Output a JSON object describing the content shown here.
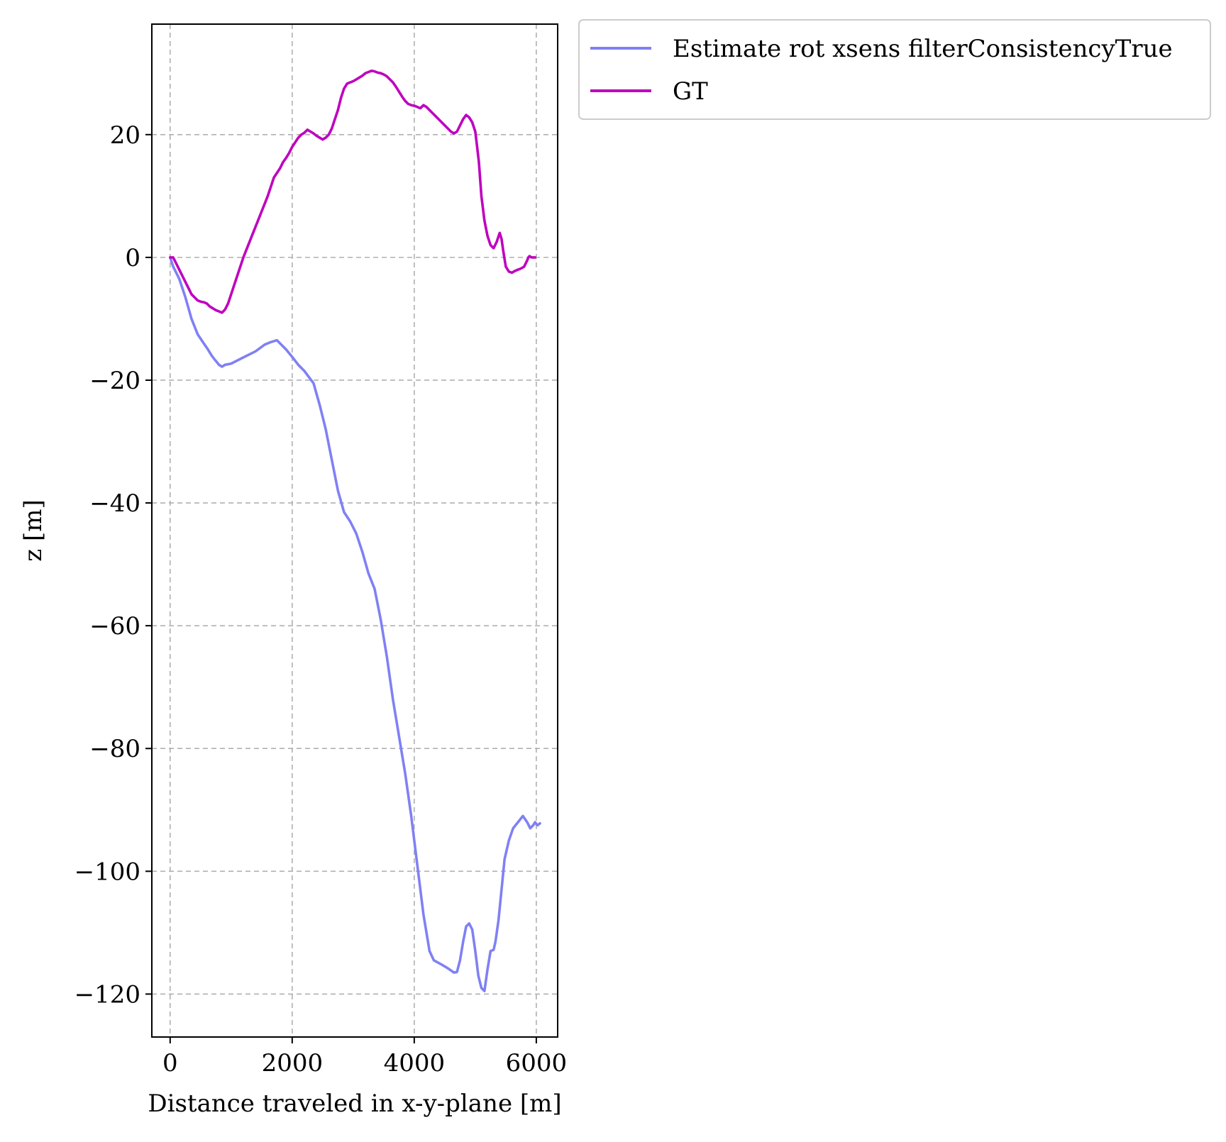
{
  "chart_data": {
    "type": "line",
    "xlabel": "Distance traveled in x-y-plane [m]",
    "ylabel": "z [m]",
    "xlim": [
      -300,
      6350
    ],
    "ylim": [
      -127,
      38
    ],
    "xticks": [
      0,
      2000,
      4000,
      6000
    ],
    "yticks": [
      20,
      0,
      -20,
      -40,
      -60,
      -80,
      -100,
      -120
    ],
    "xtick_labels": [
      "0",
      "2000",
      "4000",
      "6000"
    ],
    "ytick_labels": [
      "20",
      "0",
      "−20",
      "−40",
      "−60",
      "−80",
      "−100",
      "−120"
    ],
    "grid": true,
    "legend_position": "outside-top-right",
    "series": [
      {
        "name": "Estimate rot xsens filterConsistencyTrue",
        "color": "#8080f5",
        "x": [
          0,
          50,
          150,
          250,
          350,
          450,
          550,
          620,
          680,
          720,
          760,
          800,
          850,
          900,
          1000,
          1200,
          1400,
          1550,
          1650,
          1750,
          1800,
          1900,
          2000,
          2100,
          2200,
          2350,
          2450,
          2550,
          2650,
          2750,
          2850,
          2950,
          3050,
          3150,
          3250,
          3350,
          3450,
          3550,
          3650,
          3750,
          3850,
          3950,
          4050,
          4150,
          4250,
          4320,
          4450,
          4550,
          4650,
          4700,
          4750,
          4800,
          4850,
          4900,
          4950,
          5000,
          5050,
          5100,
          5150,
          5200,
          5250,
          5300,
          5330,
          5380,
          5430,
          5480,
          5550,
          5620,
          5700,
          5780,
          5850,
          5900,
          5950,
          5980,
          6000,
          6020,
          6060
        ],
        "values": [
          0,
          -1.5,
          -3.5,
          -6.5,
          -10,
          -12.5,
          -14,
          -15,
          -16,
          -16.5,
          -17,
          -17.5,
          -17.8,
          -17.5,
          -17.3,
          -16.3,
          -15.3,
          -14.2,
          -13.8,
          -13.5,
          -14,
          -15,
          -16.2,
          -17.5,
          -18.5,
          -20.5,
          -24,
          -28,
          -33,
          -38,
          -41.5,
          -43,
          -45,
          -48,
          -51.5,
          -54,
          -59,
          -65,
          -72,
          -78,
          -84,
          -91,
          -99,
          -107,
          -113,
          -114.5,
          -115.2,
          -115.8,
          -116.5,
          -116.4,
          -114.5,
          -111.5,
          -109,
          -108.5,
          -109.5,
          -113,
          -117,
          -119,
          -119.5,
          -116,
          -113,
          -112.8,
          -111.5,
          -108,
          -103,
          -98,
          -95,
          -93,
          -92,
          -91,
          -92,
          -93,
          -92.5,
          -92,
          -92.3,
          -92.5,
          -92.2
        ]
      },
      {
        "name": "GT",
        "color": "#bf00bf",
        "x": [
          0,
          50,
          100,
          150,
          200,
          250,
          300,
          350,
          400,
          450,
          500,
          550,
          600,
          650,
          700,
          750,
          800,
          850,
          900,
          950,
          1000,
          1100,
          1200,
          1300,
          1400,
          1500,
          1600,
          1700,
          1800,
          1850,
          1900,
          1950,
          2000,
          2100,
          2150,
          2200,
          2250,
          2300,
          2350,
          2400,
          2450,
          2500,
          2550,
          2600,
          2650,
          2700,
          2750,
          2800,
          2850,
          2900,
          2950,
          3000,
          3050,
          3100,
          3150,
          3200,
          3250,
          3300,
          3350,
          3400,
          3450,
          3500,
          3550,
          3600,
          3650,
          3700,
          3750,
          3800,
          3850,
          3900,
          3950,
          4000,
          4050,
          4100,
          4150,
          4200,
          4230,
          4250,
          4300,
          4350,
          4400,
          4450,
          4500,
          4550,
          4600,
          4650,
          4700,
          4750,
          4800,
          4850,
          4900,
          4950,
          5000,
          5030,
          5060,
          5100,
          5150,
          5200,
          5250,
          5300,
          5350,
          5400,
          5430,
          5460,
          5500,
          5550,
          5600,
          5650,
          5700,
          5750,
          5800,
          5850,
          5870,
          5890,
          5920,
          5950,
          5980
        ],
        "values": [
          0,
          0,
          -1,
          -2,
          -3,
          -4,
          -5,
          -6,
          -6.5,
          -7,
          -7.2,
          -7.3,
          -7.5,
          -8,
          -8.3,
          -8.6,
          -8.8,
          -9,
          -8.5,
          -7.5,
          -6,
          -3,
          0,
          2.5,
          5,
          7.5,
          10,
          13,
          14.5,
          15.5,
          16.2,
          17,
          18,
          19.5,
          20,
          20.3,
          20.8,
          20.5,
          20.2,
          19.8,
          19.5,
          19.2,
          19.5,
          20,
          21,
          22.5,
          24,
          26,
          27.5,
          28.3,
          28.5,
          28.7,
          29,
          29.3,
          29.6,
          30,
          30.2,
          30.4,
          30.3,
          30.1,
          30,
          29.8,
          29.5,
          29,
          28.5,
          27.8,
          27,
          26.2,
          25.5,
          25,
          24.8,
          24.7,
          24.5,
          24.3,
          24.8,
          24.5,
          24.2,
          24,
          23.5,
          23,
          22.5,
          22,
          21.5,
          21,
          20.5,
          20.2,
          20.5,
          21.5,
          22.5,
          23.2,
          22.8,
          22,
          20.5,
          18,
          15.5,
          10,
          6,
          3.5,
          2,
          1.5,
          2.5,
          4,
          3,
          1,
          -1.5,
          -2.3,
          -2.5,
          -2.2,
          -2,
          -1.8,
          -1.5,
          -0.5,
          0,
          0.2,
          0,
          0,
          0
        ]
      }
    ]
  }
}
